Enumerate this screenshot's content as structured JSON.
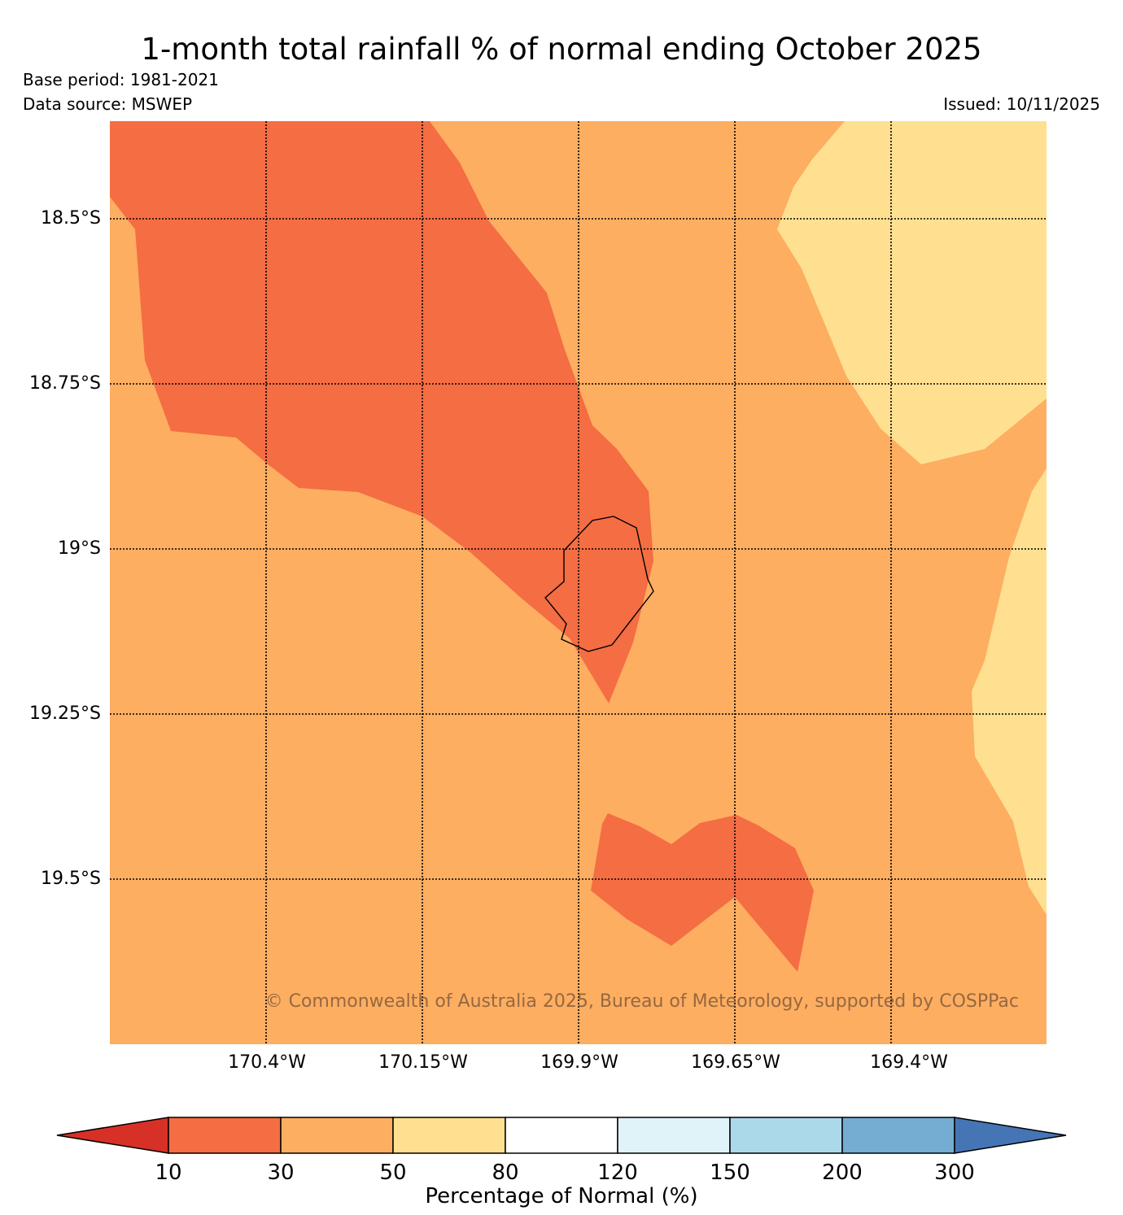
{
  "header": {
    "title": "1-month total rainfall % of normal ending October 2025",
    "base_period": "Base period: 1981-2021",
    "data_source": "Data source: MSWEP",
    "issued": "Issued: 10/11/2025"
  },
  "map": {
    "latitude_labels": [
      "18.5°S",
      "18.75°S",
      "19°S",
      "19.25°S",
      "19.5°S"
    ],
    "longitude_labels": [
      "170.4°W",
      "170.15°W",
      "169.9°W",
      "169.65°W",
      "169.4°W"
    ],
    "copyright": "© Commonwealth of Australia 2025, Bureau of Meteorology, supported by COSPPac",
    "colors": {
      "class_10_30": "#f46d43",
      "class_30_50": "#fdae61",
      "class_50_80": "#fee090"
    }
  },
  "colorbar": {
    "label": "Percentage of Normal (%)",
    "ticks": [
      "10",
      "30",
      "50",
      "80",
      "120",
      "150",
      "200",
      "300"
    ],
    "colors": [
      "#d73027",
      "#f46d43",
      "#fdae61",
      "#fee090",
      "#ffffff",
      "#e0f3f8",
      "#abd9e9",
      "#74add1",
      "#4575b4"
    ]
  }
}
